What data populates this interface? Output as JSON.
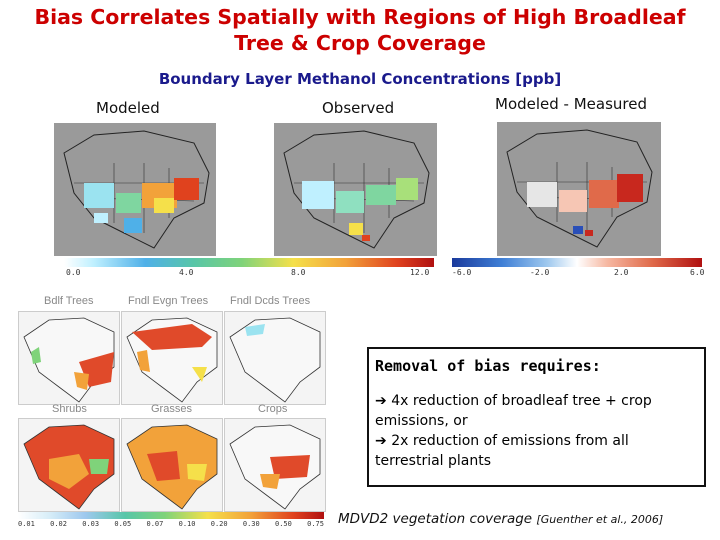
{
  "title_line1": "Bias Correlates Spatially with Regions of High Broadleaf",
  "title_line2": "Tree & Crop Coverage",
  "subtitle": "Boundary Layer Methanol Concentrations [ppb]",
  "panels": {
    "modeled": "Modeled",
    "observed": "Observed",
    "difference": "Modeled - Measured"
  },
  "colorbar_conc": {
    "ticks": [
      "0.0",
      "4.0",
      "8.0",
      "12.0"
    ]
  },
  "colorbar_diff": {
    "ticks": [
      "-6.0",
      "-2.0",
      "2.0",
      "6.0"
    ]
  },
  "vegetation": {
    "labels": [
      "Bdlf Trees",
      "Fndl Evgn Trees",
      "Fndl Dcds Trees",
      "Shrubs",
      "Grasses",
      "Crops"
    ],
    "colorbar_ticks": [
      "0.01",
      "0.02",
      "0.03",
      "0.05",
      "0.07",
      "0.10",
      "0.20",
      "0.30",
      "0.50",
      "0.75"
    ]
  },
  "bias_box": {
    "heading": "Removal of bias requires:",
    "line1a": "4x reduction of broadleaf tree + crop",
    "line1b": "emissions, or",
    "line2a": "2x reduction of emissions from all",
    "line2b": "terrestrial plants",
    "arrow": "➔"
  },
  "credit": {
    "main": "MDVD2 vegetation coverage ",
    "cite": "[Guenther et al., 2006]"
  },
  "colors": {
    "title": "#cc0000",
    "subtitle": "#1a1a8c"
  }
}
